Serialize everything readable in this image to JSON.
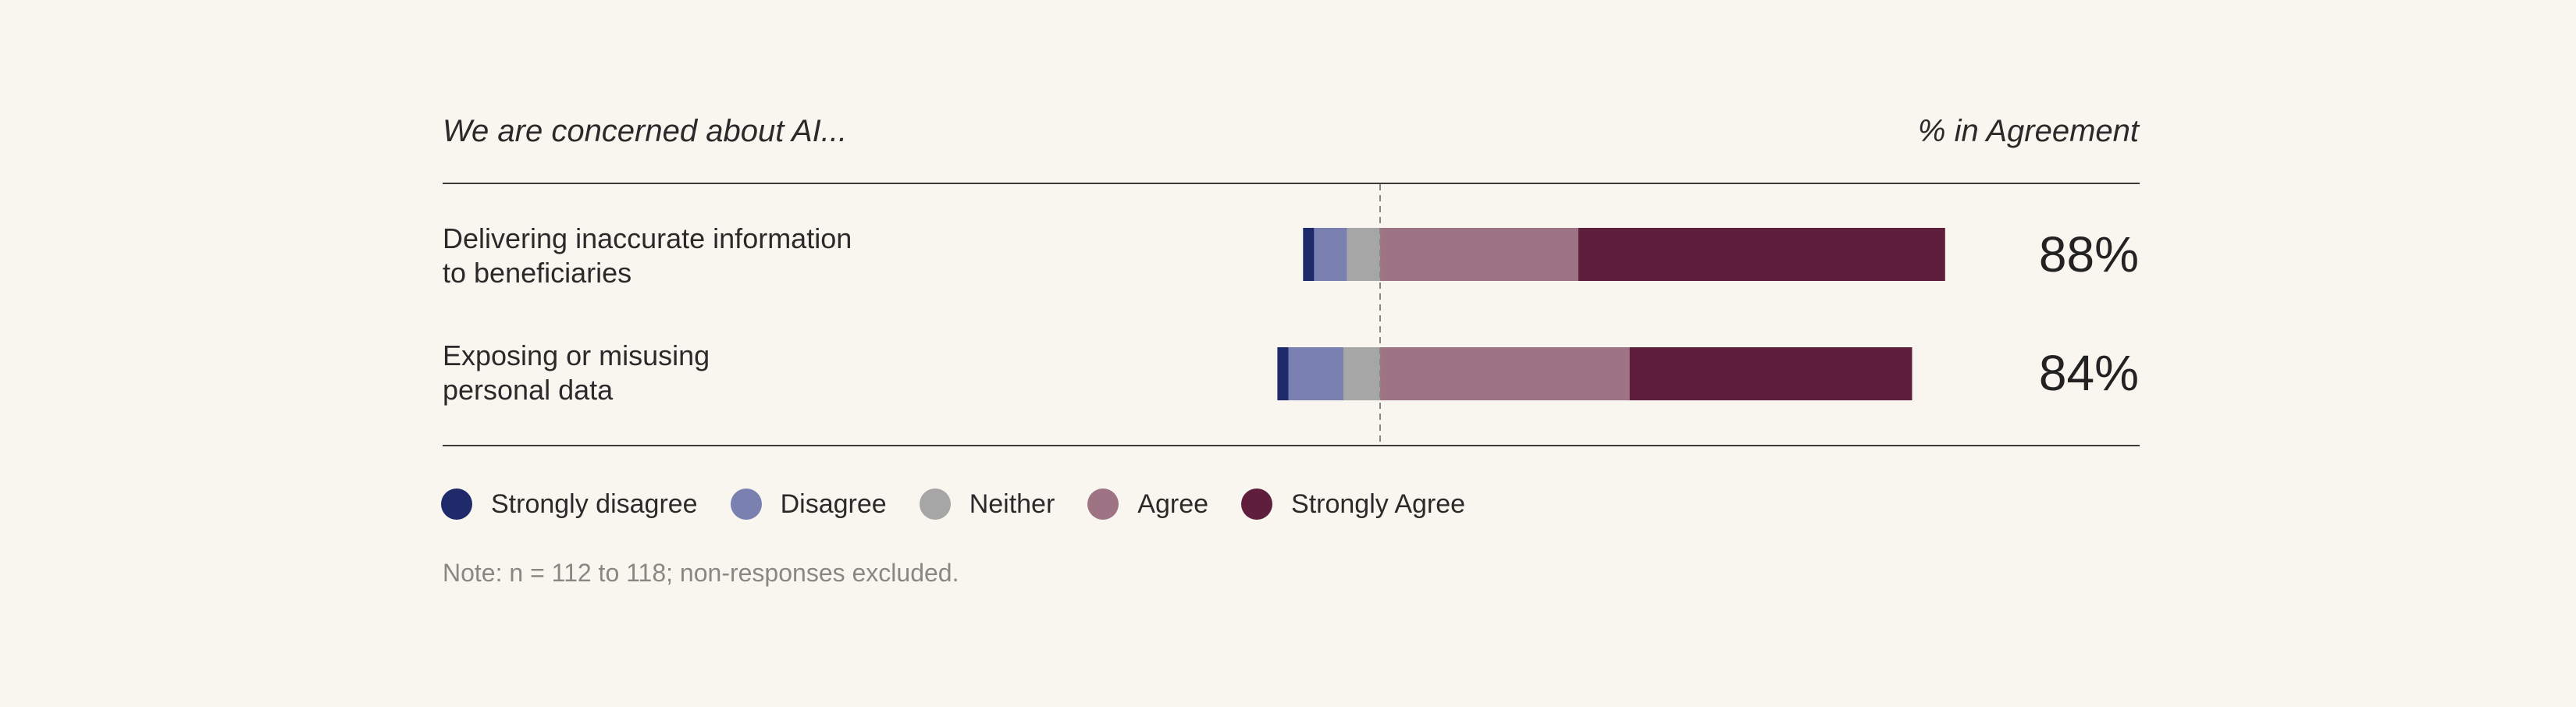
{
  "chart_data": {
    "type": "bar",
    "orientation": "horizontal",
    "stacking": "diverging",
    "title": "We are concerned about AI...",
    "value_column_header": "% in Agreement",
    "categories": [
      [
        "Delivering inaccurate information",
        "to beneficiaries"
      ],
      [
        "Exposing or misusing",
        "personal data"
      ]
    ],
    "agreement_labels": [
      "88%",
      "84%"
    ],
    "series": [
      {
        "name": "Strongly disagree",
        "color": "#1f2a6b",
        "values": [
          1.5,
          1.5
        ]
      },
      {
        "name": "Disagree",
        "color": "#7a80b0",
        "values": [
          4.5,
          7.5
        ]
      },
      {
        "name": "Neither",
        "color": "#a6a6a6",
        "values": [
          4.5,
          5
        ]
      },
      {
        "name": "Agree",
        "color": "#9e7484",
        "values": [
          27,
          34
        ]
      },
      {
        "name": "Strongly Agree",
        "color": "#5e1e3c",
        "values": [
          50,
          38.5
        ]
      }
    ],
    "center_line": "dashed",
    "legend_position": "bottom-left",
    "note": "Note: n = 112 to 118; non-responses excluded."
  }
}
